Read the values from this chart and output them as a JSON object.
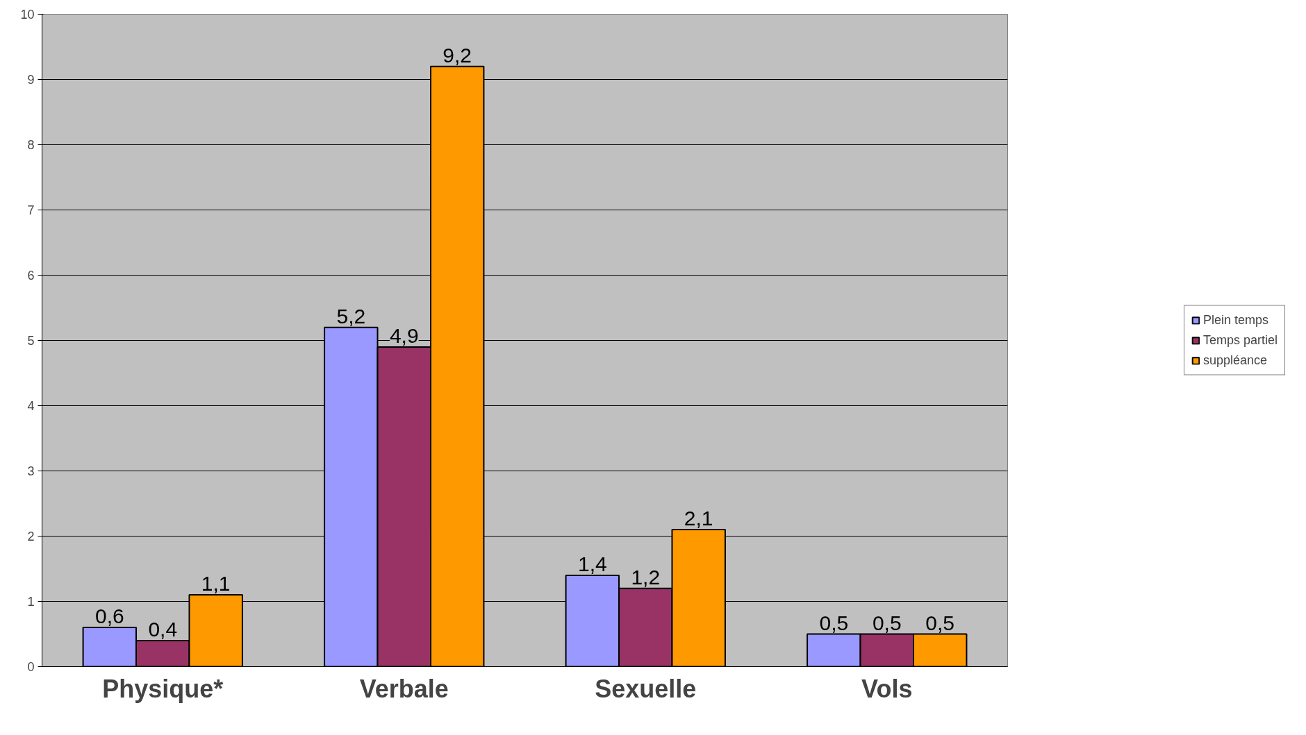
{
  "chart_data": {
    "type": "bar",
    "categories": [
      "Physique*",
      "Verbale",
      "Sexuelle",
      "Vols"
    ],
    "series": [
      {
        "name": "Plein temps",
        "color": "#9999ff",
        "values": [
          0.6,
          5.2,
          1.4,
          0.5
        ],
        "value_labels": [
          "0,6",
          "5,2",
          "1,4",
          "0,5"
        ]
      },
      {
        "name": "Temps partiel",
        "color": "#993366",
        "values": [
          0.4,
          4.9,
          1.2,
          0.5
        ],
        "value_labels": [
          "0,4",
          "4,9",
          "1,2",
          "0,5"
        ]
      },
      {
        "name": "suppléance",
        "color": "#ff9900",
        "values": [
          1.1,
          9.2,
          2.1,
          0.5
        ],
        "value_labels": [
          "1,1",
          "9,2",
          "2,1",
          "0,5"
        ]
      }
    ],
    "ylim": [
      0,
      10
    ],
    "yticks": [
      0,
      1,
      2,
      3,
      4,
      5,
      6,
      7,
      8,
      9,
      10
    ],
    "grid": "y",
    "legend": "right"
  }
}
